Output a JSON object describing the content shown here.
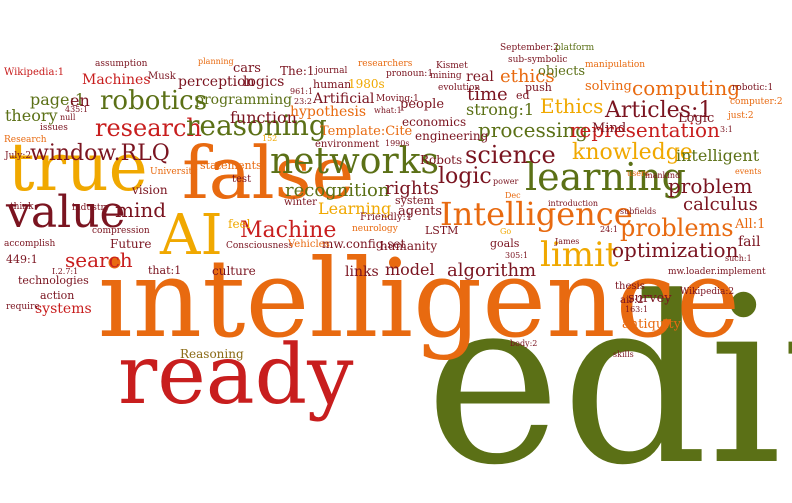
{
  "palette": {
    "olive": "#5b7016",
    "orange": "#e86a10",
    "gold": "#f0a800",
    "maroon": "#7a1420",
    "crimson": "#c81e1e",
    "brown": "#8a6a14"
  },
  "words": {
    "edit": "edit",
    "intelligence": "intelligence",
    "ready": "ready",
    "false": "false",
    "true": "true",
    "AI": "AI",
    "value": "value",
    "networks": "networks",
    "learning": "learning",
    "limit": "limit",
    "Intelligence": "Intelligence",
    "robotics": "robotics",
    "research": "research",
    "reasoning": "reasoning",
    "window_rlq": "window.RLQ",
    "science": "science",
    "knowledge": "knowledge",
    "problems": "problems",
    "problem": "problem",
    "optimization": "optimization",
    "logic": "logic",
    "processing": "processing",
    "representation": "representation",
    "Articles": "Articles:1",
    "Ethics": "Ethics",
    "ethics": "ethics",
    "computing": "computing",
    "intelligent": "intelligent",
    "calculus": "calculus",
    "search": "search",
    "mind": "mind",
    "Machine": "Machine",
    "recognition": "recognition",
    "function": "function",
    "rights": "rights",
    "Learning": "Learning",
    "model": "model",
    "algorithm": "algorithm",
    "links": "links",
    "systems": "systems",
    "Reasoning": "Reasoning",
    "theory": "theory",
    "page": "page:1",
    "en": "en",
    "Machines": "Machines",
    "perception": "perception",
    "programming": "programming",
    "logics": "logics",
    "cars": "cars",
    "time": "time",
    "strong": "strong:1",
    "real": "real",
    "objects": "objects",
    "solving": "solving",
    "Mind": "Mind",
    "Logic": "Logic",
    "people": "people",
    "Template": "Template:Cite",
    "hypothesis": "hypothesis",
    "Artificial": "Artificial",
    "human": "human",
    "The": "The:1",
    "y1980s": "1980s",
    "economics": "economics",
    "engineering": "engineering",
    "Robots": "Robots",
    "Future": "Future",
    "vision": "vision",
    "feel": "feel",
    "culture": "culture",
    "humanity": "humanity",
    "mwconfigset": "mw.config.set",
    "agents": "agents",
    "system": "system",
    "LSTM": "LSTM",
    "goals": "goals",
    "fail": "fail",
    "All": "All:1",
    "survey": "survey",
    "antiquity": "antiquity",
    "thesis": "thesis",
    "air": "air:2",
    "Wikipedia2": "Wikipedia:2",
    "Wikipedia": "Wikipedia:1",
    "mwloader": "mw.loader.implement",
    "accomplish": "accomplish",
    "n449": "449:1",
    "technologies": "technologies",
    "action": "action",
    "require": "require",
    "Consciousness": "Consciousness",
    "Vehicles": "Vehicles",
    "that": "that:1",
    "statements": "statements",
    "test": "test",
    "winter": "winter",
    "neurology": "neurology",
    "Friendly": "Friendly:1",
    "environment": "environment",
    "compression": "compression",
    "industry": "industry",
    "University": "University",
    "issues": "issues",
    "July": "July:2",
    "Research": "Research",
    "think": "think",
    "null": "null",
    "n435": "435:1",
    "assumption": "assumption",
    "Musk": "Musk",
    "planning": "planning",
    "journal": "journal",
    "researchers": "researchers",
    "September": "September:2",
    "platform": "platform",
    "subsymbolic": "sub-symbolic",
    "manipulation": "manipulation",
    "robotic": "robotic:1",
    "computer": "computer:2",
    "just": "just:2",
    "n31": "3:1",
    "Kismet": "Kismet",
    "mining": "mining",
    "evolution": "evolution",
    "pronoun": "pronoun:1",
    "Moving": "Moving:1",
    "what": "what:1",
    "push": "push",
    "ed": "ed",
    "n961": "961:1",
    "n232": "23:2",
    "n1990s": "1990s",
    "n152": "152",
    "power": "power",
    "users": "users",
    "mankind": "mankind",
    "events": "events",
    "subfields": "subfields",
    "introduction": "introduction",
    "James": "James",
    "n241": "24:1",
    "Go": "Go",
    "such": "such:1",
    "n305": "305:1",
    "body": "body:2",
    "skills": "skills",
    "n163": "163:1",
    "Dec": "Dec",
    "I27": "I.2.7:1"
  }
}
